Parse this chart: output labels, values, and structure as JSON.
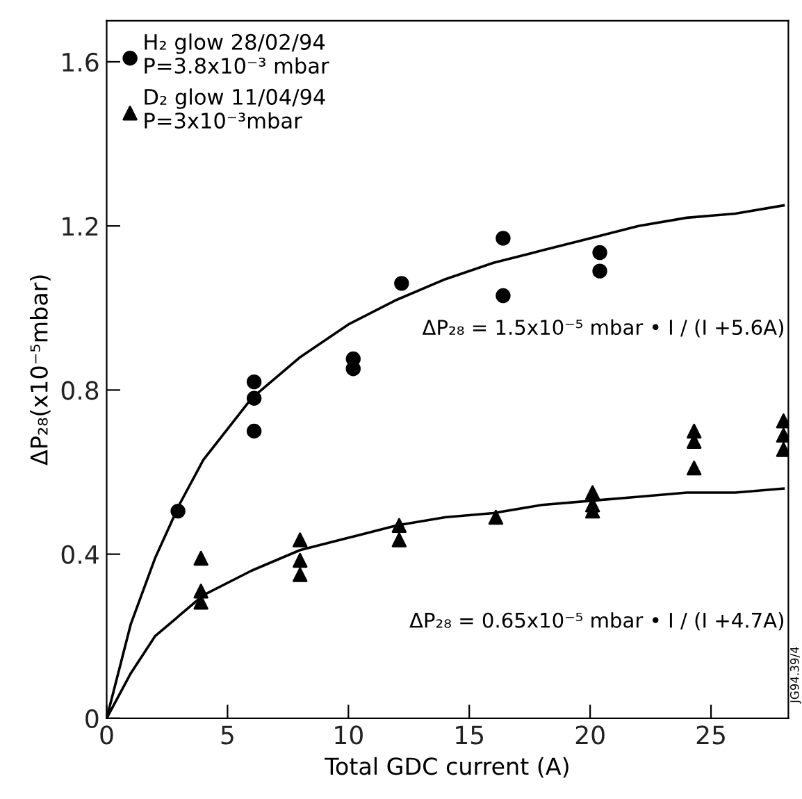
{
  "chart_data": {
    "type": "scatter",
    "xlabel": "Total GDC current (A)",
    "ylabel": "ΔP₂₈(x10⁻⁵mbar)",
    "xlim": [
      0,
      28.2
    ],
    "ylim": [
      0,
      1.7
    ],
    "xticks": [
      0,
      5,
      10,
      15,
      20,
      25
    ],
    "yticks": [
      0,
      0.4,
      0.8,
      1.2,
      1.6
    ],
    "grid": false,
    "legend": "top left",
    "series": [
      {
        "name": "H₂ glow 28/02/94\nP=3.8x10⁻³ mbar",
        "marker": "circle",
        "color": "#000000",
        "x": [
          2.95,
          6.1,
          6.1,
          6.1,
          10.2,
          10.2,
          12.2,
          16.4,
          16.4,
          20.4,
          20.4
        ],
        "values": [
          0.505,
          0.82,
          0.78,
          0.7,
          0.876,
          0.852,
          1.06,
          1.17,
          1.03,
          1.135,
          1.09
        ]
      },
      {
        "name": "D₂ glow 11/04/94\nP=3x10⁻³mbar",
        "marker": "triangle",
        "color": "#000000",
        "x": [
          3.9,
          3.9,
          3.9,
          8.0,
          8.0,
          8.0,
          12.1,
          12.1,
          16.1,
          20.1,
          20.1,
          20.1,
          24.3,
          24.3,
          24.3,
          28.0,
          28.0,
          28.0
        ],
        "values": [
          0.39,
          0.31,
          0.283,
          0.435,
          0.385,
          0.35,
          0.47,
          0.435,
          0.49,
          0.55,
          0.52,
          0.505,
          0.7,
          0.675,
          0.61,
          0.725,
          0.69,
          0.655
        ]
      },
      {
        "type": "line",
        "marker": "none",
        "color": "#000000",
        "x": [
          0,
          1,
          2,
          3,
          4,
          6,
          8,
          10,
          12,
          14,
          16,
          18,
          20,
          22,
          24,
          26,
          28
        ],
        "values": [
          0,
          0.23,
          0.39,
          0.52,
          0.63,
          0.78,
          0.88,
          0.96,
          1.02,
          1.07,
          1.11,
          1.14,
          1.17,
          1.2,
          1.22,
          1.23,
          1.25
        ]
      },
      {
        "type": "line",
        "marker": "none",
        "color": "#000000",
        "x": [
          0,
          1,
          2,
          3,
          4,
          6,
          8,
          10,
          12,
          14,
          16,
          18,
          20,
          22,
          24,
          26,
          28
        ],
        "values": [
          0,
          0.11,
          0.2,
          0.25,
          0.3,
          0.36,
          0.41,
          0.44,
          0.47,
          0.49,
          0.5,
          0.52,
          0.53,
          0.54,
          0.55,
          0.55,
          0.56
        ]
      }
    ],
    "annotations": [
      "ΔP₂₈ = 1.5x10⁻⁵ mbar • I / (I +5.6A)",
      "ΔP₂₈ = 0.65x10⁻⁵ mbar • I / (I +4.7A)",
      "JG94.39/4"
    ]
  }
}
